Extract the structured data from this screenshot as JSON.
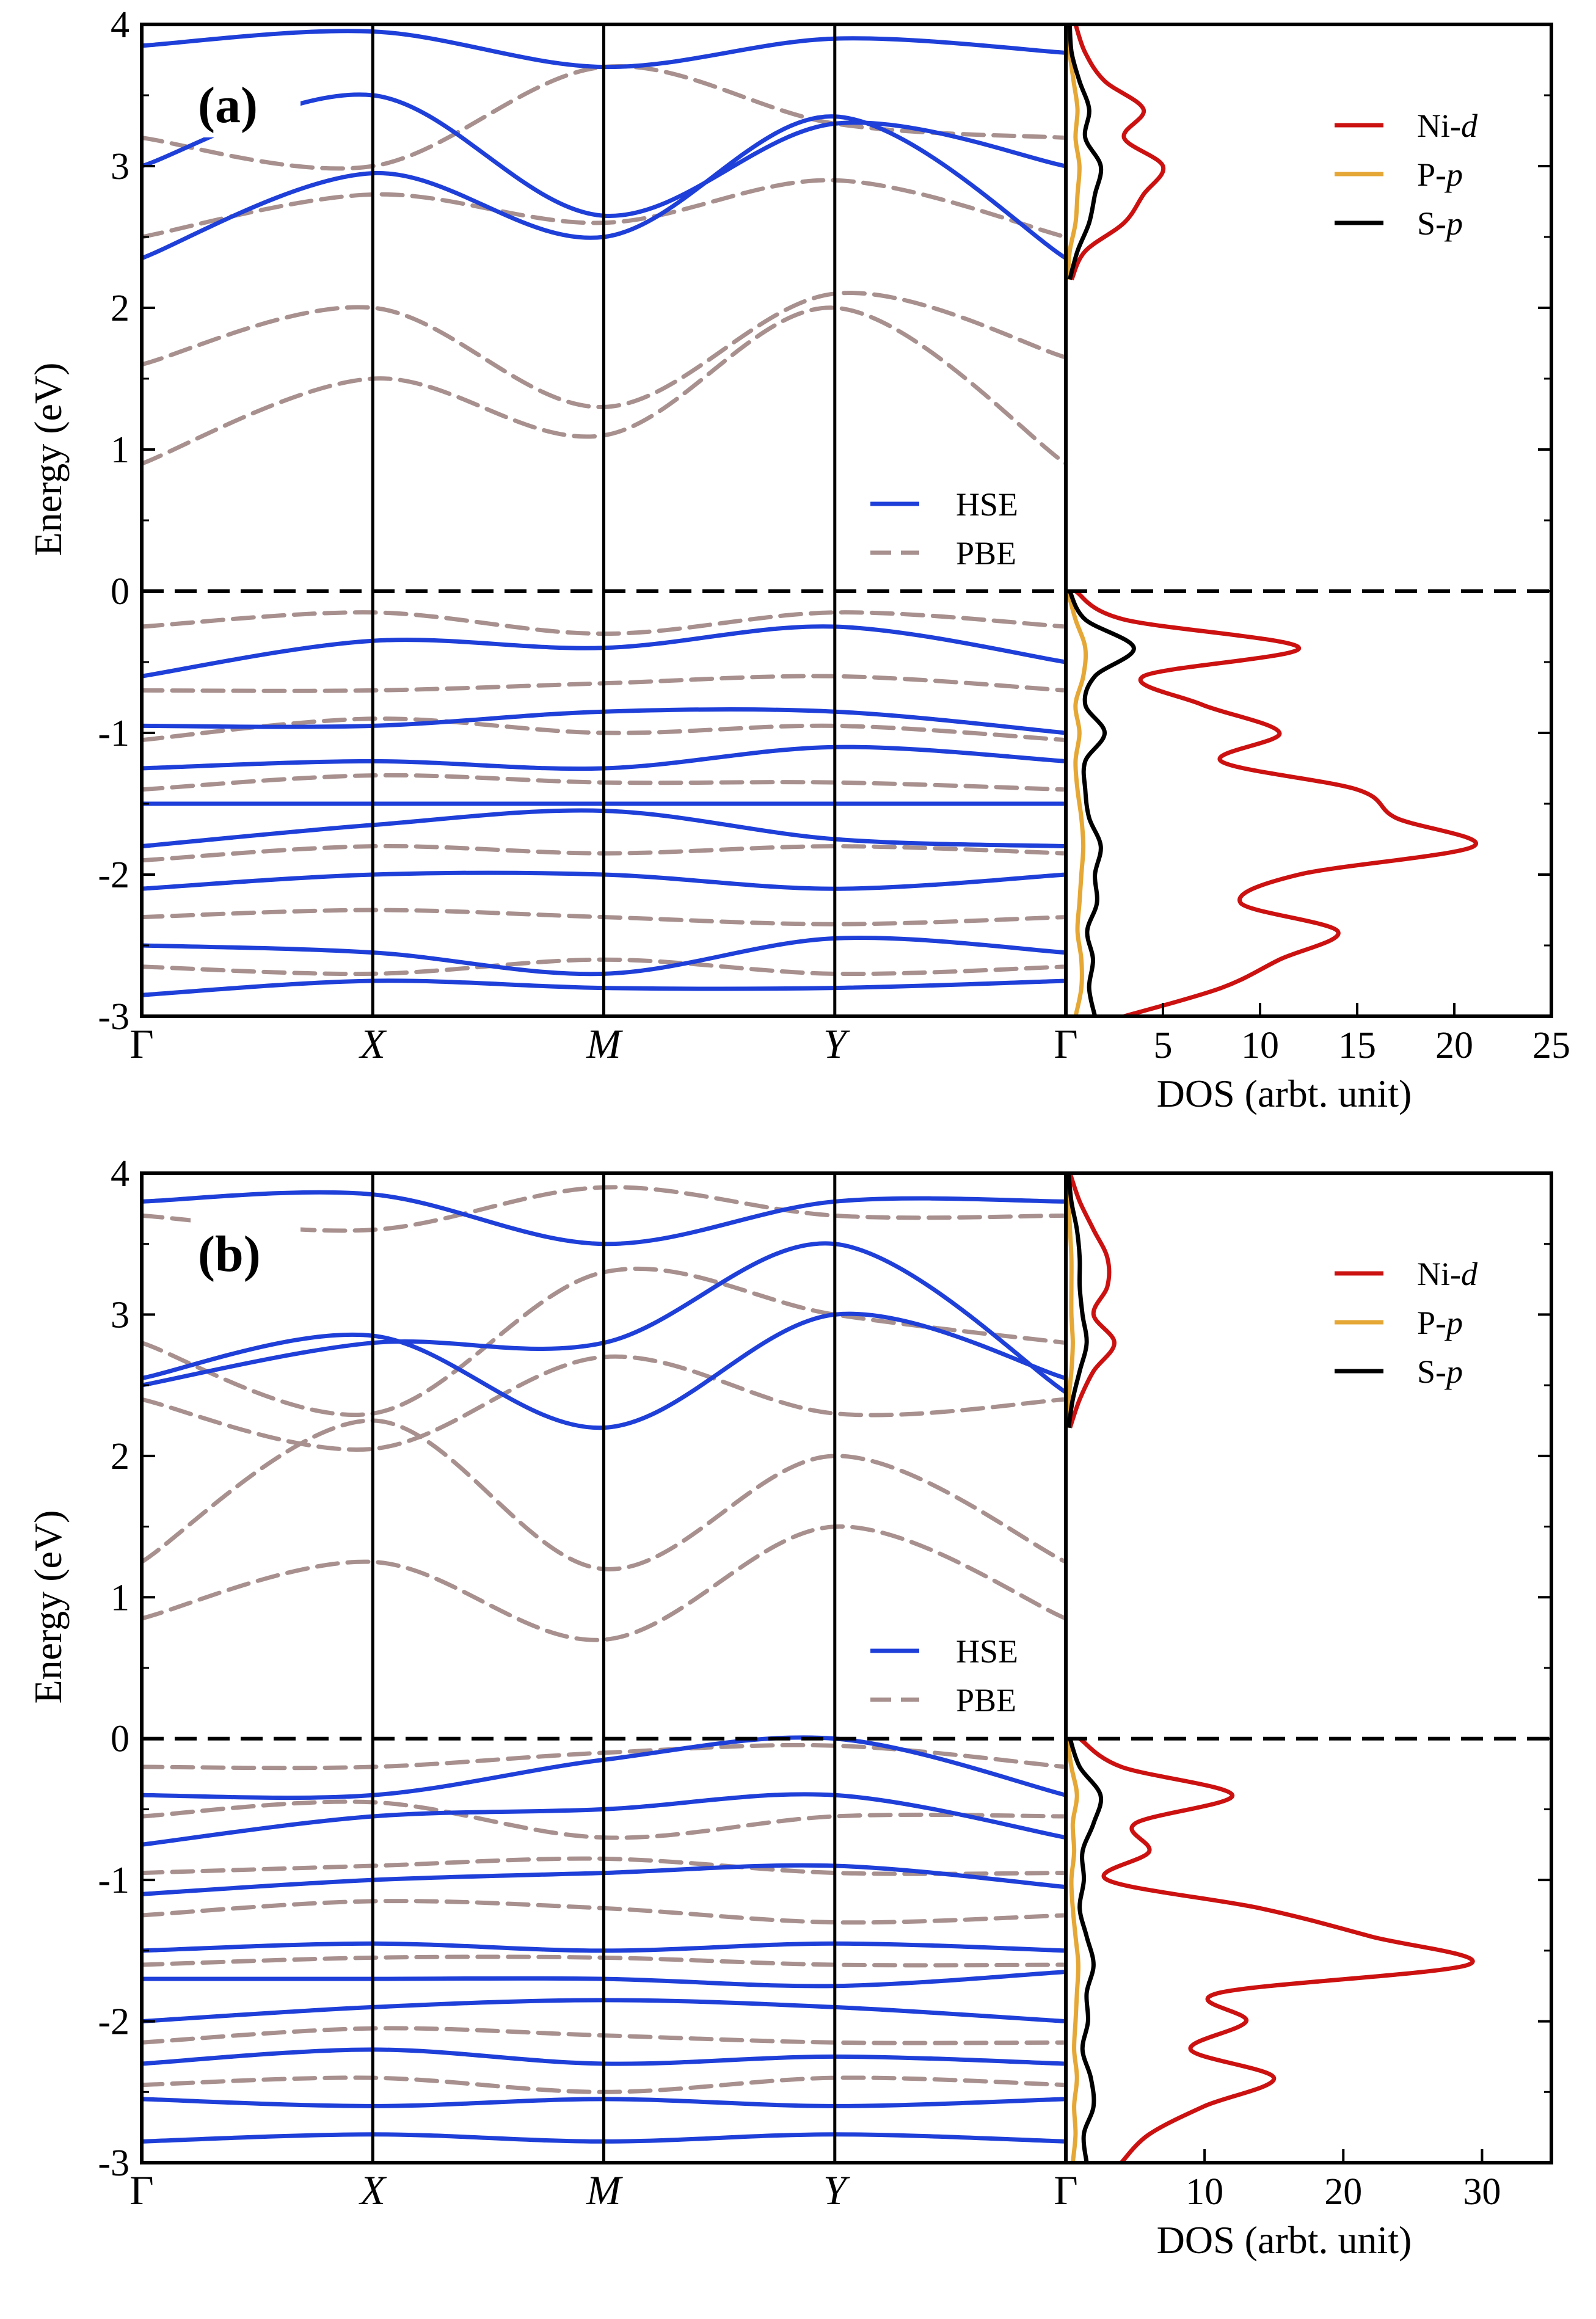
{
  "figure_title": "",
  "legend_band": {
    "hse_label": "HSE",
    "pbe_label": "PBE"
  },
  "legend_dos": {
    "ni": {
      "prefix": "Ni-",
      "orbital": "d"
    },
    "p": {
      "prefix": "P-",
      "orbital": "p"
    },
    "s": {
      "prefix": "S-",
      "orbital": "p"
    }
  },
  "colors": {
    "hse": "#1f3fd9",
    "pbe": "#a7908e",
    "ni_d": "#cc1111",
    "p_p": "#e5a735",
    "s_p": "#000000"
  },
  "chart_data": [
    {
      "type": "line",
      "panel_label": "(a)",
      "title": "",
      "band_structure": {
        "ylabel": "Energy (eV)",
        "ylim": [
          -3,
          4
        ],
        "yticks": [
          -3,
          -2,
          -1,
          0,
          1,
          2,
          3,
          4
        ],
        "ytick_labels": [
          "-3",
          "-2",
          "-1",
          "0",
          "1",
          "2",
          "3",
          "4"
        ],
        "kpoints": [
          "Γ",
          "X",
          "M",
          "Y",
          "Γ"
        ],
        "kpoints_italic": [
          false,
          true,
          true,
          true,
          false
        ],
        "fermi_level": 0,
        "x": [
          0,
          1,
          2,
          3,
          4
        ],
        "series": [
          {
            "name": "HSE",
            "style": "solid",
            "bands": [
              [
                -0.6,
                -0.35,
                -0.4,
                -0.25,
                -0.5
              ],
              [
                -0.95,
                -0.95,
                -0.85,
                -0.85,
                -1.0
              ],
              [
                -1.25,
                -1.2,
                -1.25,
                -1.1,
                -1.2
              ],
              [
                -1.5,
                -1.5,
                -1.5,
                -1.5,
                -1.5
              ],
              [
                -1.8,
                -1.65,
                -1.55,
                -1.75,
                -1.8
              ],
              [
                -2.1,
                -2.0,
                -2.0,
                -2.1,
                -2.0
              ],
              [
                -2.5,
                -2.55,
                -2.7,
                -2.45,
                -2.55
              ],
              [
                -2.85,
                -2.75,
                -2.8,
                -2.8,
                -2.75
              ],
              [
                2.35,
                2.95,
                2.5,
                3.35,
                2.35
              ],
              [
                3.0,
                3.5,
                2.65,
                3.3,
                3.0
              ],
              [
                3.85,
                3.95,
                3.7,
                3.9,
                3.8
              ]
            ]
          },
          {
            "name": "PBE",
            "style": "dashed",
            "bands": [
              [
                -0.25,
                -0.15,
                -0.3,
                -0.15,
                -0.25
              ],
              [
                -0.7,
                -0.7,
                -0.65,
                -0.6,
                -0.7
              ],
              [
                -1.05,
                -0.9,
                -1.0,
                -0.95,
                -1.05
              ],
              [
                -1.4,
                -1.3,
                -1.35,
                -1.35,
                -1.4
              ],
              [
                -1.9,
                -1.8,
                -1.85,
                -1.8,
                -1.85
              ],
              [
                -2.3,
                -2.25,
                -2.3,
                -2.35,
                -2.3
              ],
              [
                -2.65,
                -2.7,
                -2.6,
                -2.7,
                -2.65
              ],
              [
                0.9,
                1.5,
                1.1,
                2.0,
                0.9
              ],
              [
                1.6,
                2.0,
                1.3,
                2.1,
                1.65
              ],
              [
                2.5,
                2.8,
                2.6,
                2.9,
                2.5
              ],
              [
                3.2,
                3.0,
                3.7,
                3.3,
                3.2
              ]
            ]
          }
        ]
      },
      "dos": {
        "xlabel": "DOS (arbt. unit)",
        "xlim": [
          0,
          25
        ],
        "xticks": [
          5,
          10,
          15,
          20,
          25
        ],
        "xtick_labels": [
          "5",
          "10",
          "15",
          "20",
          "25"
        ],
        "energy": [
          -3.0,
          -2.8,
          -2.6,
          -2.4,
          -2.2,
          -2.0,
          -1.8,
          -1.6,
          -1.4,
          -1.2,
          -1.0,
          -0.8,
          -0.6,
          -0.4,
          -0.2,
          0.0,
          2.2,
          2.4,
          2.6,
          2.8,
          3.0,
          3.2,
          3.4,
          3.6,
          3.8,
          4.0
        ],
        "series": [
          {
            "name": "Ni-d",
            "values": [
              3,
              8,
              11,
              14,
              9,
              12,
              21,
              17,
              15,
              8,
              11,
              7,
              4,
              12,
              3,
              0.5,
              0.3,
              1,
              3,
              4,
              5,
              3,
              4,
              2,
              1,
              0.5
            ]
          },
          {
            "name": "P-p",
            "values": [
              0.5,
              0.8,
              0.8,
              0.6,
              0.7,
              0.8,
              0.9,
              0.8,
              0.6,
              0.5,
              0.7,
              0.5,
              0.9,
              1.0,
              0.5,
              0.1,
              0.1,
              0.2,
              0.5,
              0.6,
              0.7,
              0.5,
              0.6,
              0.4,
              0.2,
              0.1
            ]
          },
          {
            "name": "S-p",
            "values": [
              1.5,
              1.2,
              1.4,
              1.1,
              1.6,
              1.5,
              1.8,
              1.2,
              1.0,
              1.0,
              2.0,
              1.0,
              1.5,
              3.5,
              1.0,
              0.2,
              0.2,
              0.6,
              1.2,
              1.5,
              1.8,
              1.0,
              1.2,
              0.7,
              0.3,
              0.2
            ]
          }
        ]
      }
    },
    {
      "type": "line",
      "panel_label": "(b)",
      "title": "",
      "band_structure": {
        "ylabel": "Energy (eV)",
        "ylim": [
          -3,
          4
        ],
        "yticks": [
          -3,
          -2,
          -1,
          0,
          1,
          2,
          3,
          4
        ],
        "ytick_labels": [
          "-3",
          "-2",
          "-1",
          "0",
          "1",
          "2",
          "3",
          "4"
        ],
        "kpoints": [
          "Γ",
          "X",
          "M",
          "Y",
          "Γ"
        ],
        "kpoints_italic": [
          false,
          true,
          true,
          true,
          false
        ],
        "fermi_level": 0,
        "x": [
          0,
          1,
          2,
          3,
          4
        ],
        "series": [
          {
            "name": "HSE",
            "style": "solid",
            "bands": [
              [
                -0.4,
                -0.4,
                -0.15,
                0.0,
                -0.4
              ],
              [
                -0.75,
                -0.55,
                -0.5,
                -0.4,
                -0.7
              ],
              [
                -1.1,
                -1.0,
                -0.95,
                -0.9,
                -1.05
              ],
              [
                -1.5,
                -1.45,
                -1.5,
                -1.45,
                -1.5
              ],
              [
                -1.7,
                -1.7,
                -1.7,
                -1.75,
                -1.65
              ],
              [
                -2.0,
                -1.9,
                -1.85,
                -1.9,
                -2.0
              ],
              [
                -2.3,
                -2.2,
                -2.3,
                -2.25,
                -2.3
              ],
              [
                -2.55,
                -2.6,
                -2.55,
                -2.6,
                -2.55
              ],
              [
                -2.85,
                -2.8,
                -2.85,
                -2.8,
                -2.85
              ],
              [
                2.55,
                2.85,
                2.2,
                3.0,
                2.55
              ],
              [
                2.5,
                2.8,
                2.8,
                3.5,
                2.45
              ],
              [
                3.8,
                3.85,
                3.5,
                3.8,
                3.8
              ]
            ]
          },
          {
            "name": "PBE",
            "style": "dashed",
            "bands": [
              [
                -0.2,
                -0.2,
                -0.1,
                -0.05,
                -0.2
              ],
              [
                -0.55,
                -0.45,
                -0.7,
                -0.55,
                -0.55
              ],
              [
                -0.95,
                -0.9,
                -0.85,
                -0.95,
                -0.95
              ],
              [
                -1.25,
                -1.15,
                -1.2,
                -1.3,
                -1.25
              ],
              [
                -1.6,
                -1.55,
                -1.55,
                -1.6,
                -1.6
              ],
              [
                -2.15,
                -2.05,
                -2.1,
                -2.15,
                -2.15
              ],
              [
                -2.45,
                -2.4,
                -2.5,
                -2.4,
                -2.45
              ],
              [
                0.85,
                1.25,
                0.7,
                1.5,
                0.85
              ],
              [
                1.25,
                2.25,
                1.2,
                2.0,
                1.25
              ],
              [
                2.4,
                2.05,
                2.7,
                2.3,
                2.4
              ],
              [
                2.8,
                2.3,
                3.3,
                3.0,
                2.8
              ],
              [
                3.7,
                3.6,
                3.9,
                3.7,
                3.7
              ]
            ]
          }
        ]
      },
      "dos": {
        "xlabel": "DOS (arbt. unit)",
        "xlim": [
          0,
          35
        ],
        "xticks": [
          10,
          20,
          30
        ],
        "xtick_labels": [
          "10",
          "20",
          "30"
        ],
        "energy": [
          -3.0,
          -2.8,
          -2.6,
          -2.4,
          -2.2,
          -2.0,
          -1.8,
          -1.6,
          -1.4,
          -1.2,
          -1.0,
          -0.8,
          -0.6,
          -0.4,
          -0.2,
          0.0,
          2.2,
          2.4,
          2.6,
          2.8,
          3.0,
          3.2,
          3.4,
          3.6,
          3.8,
          4.0
        ],
        "series": [
          {
            "name": "Ni-d",
            "values": [
              4,
              6,
              10,
              15,
              9,
              13,
              11,
              29,
              22,
              14,
              3,
              6,
              5,
              12,
              4,
              1,
              0.3,
              1,
              2,
              3.5,
              2,
              3,
              3,
              2,
              1,
              0.3
            ]
          },
          {
            "name": "P-p",
            "values": [
              0.5,
              0.7,
              0.6,
              0.8,
              0.6,
              0.7,
              0.8,
              0.9,
              0.7,
              0.5,
              0.4,
              0.6,
              0.5,
              0.8,
              0.4,
              0.1,
              0.1,
              0.2,
              0.4,
              0.5,
              0.4,
              0.4,
              0.4,
              0.3,
              0.2,
              0.1
            ]
          },
          {
            "name": "S-p",
            "values": [
              1.5,
              1.3,
              2.0,
              1.8,
              1.2,
              1.6,
              1.5,
              2.0,
              1.5,
              1.0,
              1.3,
              1.2,
              2.0,
              2.5,
              1.0,
              0.3,
              0.2,
              0.5,
              1.0,
              1.5,
              1.2,
              1.0,
              1.0,
              0.8,
              0.4,
              0.2
            ]
          }
        ]
      }
    }
  ]
}
